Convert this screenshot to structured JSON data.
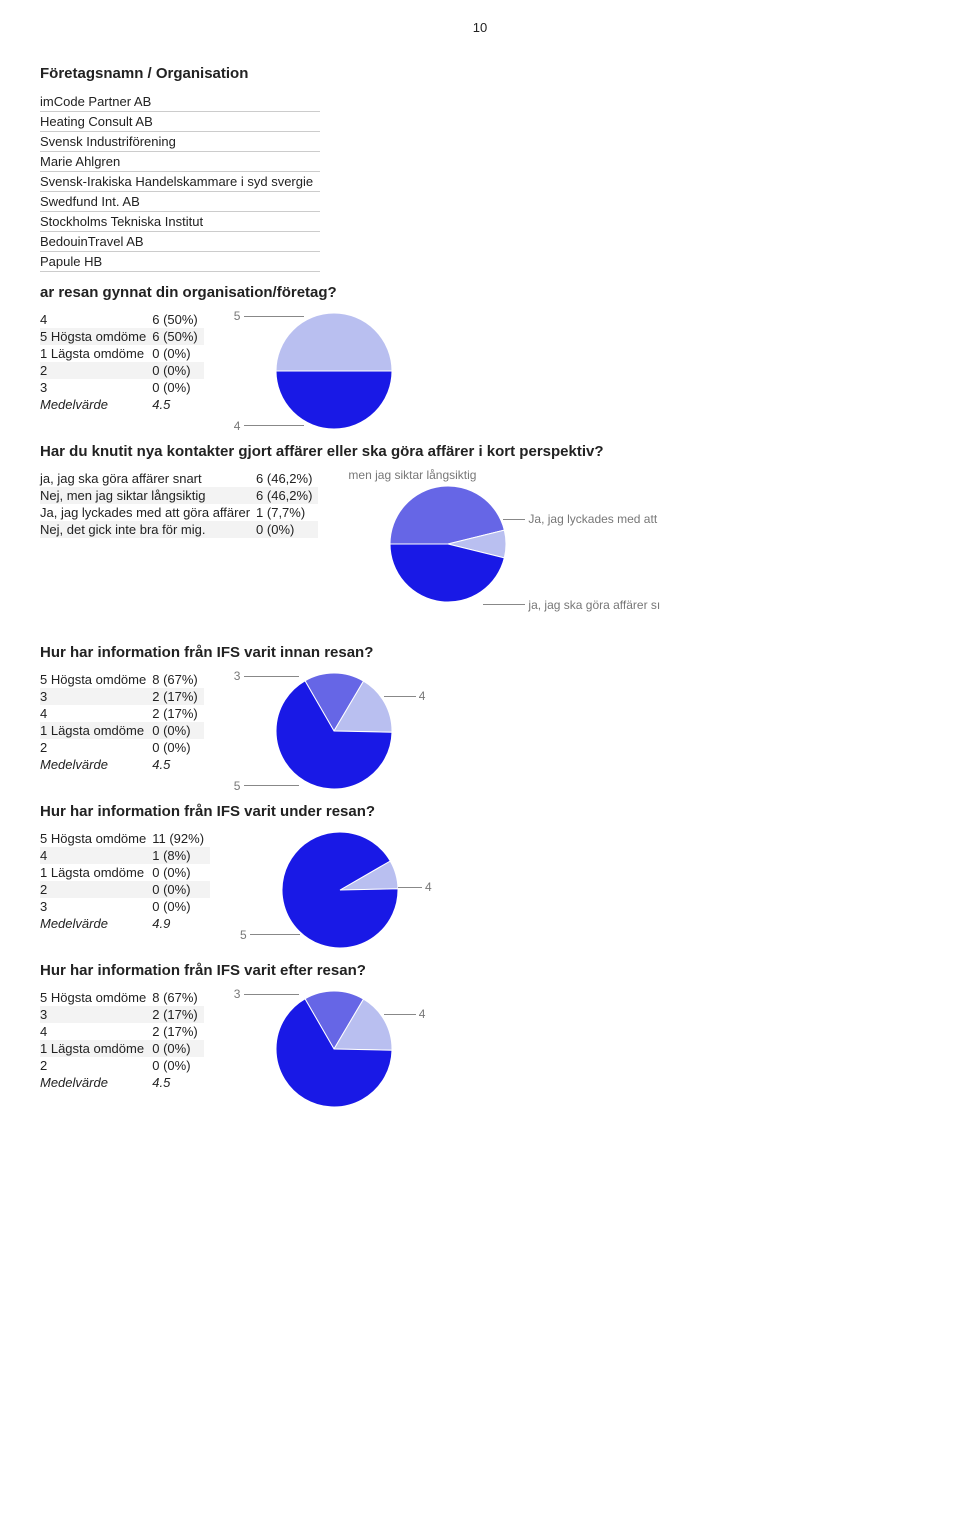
{
  "page_number": "10",
  "heading_company": "Företagsnamn / Organisation",
  "companies": [
    "imCode Partner AB",
    "Heating Consult AB",
    "Svensk Industriförening",
    "Marie Ahlgren",
    "Svensk-Irakiska Handelskammare i syd svergie",
    "Swedfund Int. AB",
    "Stockholms Tekniska Institut",
    "BedouinTravel AB",
    "Papule HB"
  ],
  "q1": {
    "title": "ar resan gynnat din organisation/företag?",
    "rows": [
      {
        "label": "4",
        "val": "6 (50%)"
      },
      {
        "label": "5 Högsta omdöme",
        "val": "6 (50%)"
      },
      {
        "label": "1 Lägsta omdöme",
        "val": "0 (0%)"
      },
      {
        "label": "2",
        "val": "0 (0%)"
      },
      {
        "label": "3",
        "val": "0 (0%)"
      }
    ],
    "avg_label": "Medelvärde",
    "avg_val": "4.5",
    "chart": {
      "slices": [
        {
          "color": "#b9bff0",
          "value": 50,
          "label": "5"
        },
        {
          "color": "#1919e6",
          "value": 50,
          "label": "4"
        }
      ]
    }
  },
  "q2": {
    "title": "Har du knutit nya kontakter gjort affärer eller ska göra affärer i kort perspektiv?",
    "rows": [
      {
        "label": "ja, jag ska göra affärer snart",
        "val": "6 (46,2%)"
      },
      {
        "label": "Nej, men jag siktar långsiktig",
        "val": "6 (46,2%)"
      },
      {
        "label": "Ja, jag lyckades med att göra affärer",
        "val": "1 (7,7%)"
      },
      {
        "label": "Nej, det gick inte bra för mig.",
        "val": "0 (0%)"
      }
    ],
    "chart": {
      "labels": {
        "top": "men jag siktar långsiktig",
        "right1": "Ja, jag lyckades med att",
        "right2": "ja, jag ska göra affärer sı"
      },
      "slices": [
        {
          "color": "#6666e6",
          "value": 46.2
        },
        {
          "color": "#b9bff0",
          "value": 7.7
        },
        {
          "color": "#1919e6",
          "value": 46.2
        }
      ]
    }
  },
  "q3": {
    "title": "Hur har information från IFS varit innan resan?",
    "rows": [
      {
        "label": "5 Högsta omdöme",
        "val": "8 (67%)"
      },
      {
        "label": "3",
        "val": "2 (17%)"
      },
      {
        "label": "4",
        "val": "2 (17%)"
      },
      {
        "label": "1 Lägsta omdöme",
        "val": "0 (0%)"
      },
      {
        "label": "2",
        "val": "0 (0%)"
      }
    ],
    "avg_label": "Medelvärde",
    "avg_val": "4.5",
    "chart": {
      "labels": {
        "l1": "3",
        "l2": "4",
        "l3": "5"
      },
      "slices": [
        {
          "color": "#6666e6",
          "value": 17
        },
        {
          "color": "#b9bff0",
          "value": 17
        },
        {
          "color": "#1919e6",
          "value": 67
        }
      ]
    }
  },
  "q4": {
    "title": "Hur har information från IFS varit under resan?",
    "rows": [
      {
        "label": "5 Högsta omdöme",
        "val": "11 (92%)"
      },
      {
        "label": "4",
        "val": "1  (8%)"
      },
      {
        "label": "1 Lägsta omdöme",
        "val": "0  (0%)"
      },
      {
        "label": "2",
        "val": "0  (0%)"
      },
      {
        "label": "3",
        "val": "0  (0%)"
      }
    ],
    "avg_label": "Medelvärde",
    "avg_val": "4.9",
    "chart": {
      "labels": {
        "l1": "4",
        "l2": "5"
      },
      "slices": [
        {
          "color": "#b9bff0",
          "value": 8
        },
        {
          "color": "#1919e6",
          "value": 92
        }
      ]
    }
  },
  "q5": {
    "title": "Hur har information från IFS varit efter resan?",
    "rows": [
      {
        "label": "5 Högsta omdöme",
        "val": "8 (67%)"
      },
      {
        "label": "3",
        "val": "2 (17%)"
      },
      {
        "label": "4",
        "val": "2 (17%)"
      },
      {
        "label": "1 Lägsta omdöme",
        "val": "0 (0%)"
      },
      {
        "label": "2",
        "val": "0 (0%)"
      }
    ],
    "avg_label": "Medelvärde",
    "avg_val": "4.5",
    "chart": {
      "labels": {
        "l1": "3",
        "l2": "4"
      },
      "slices": [
        {
          "color": "#6666e6",
          "value": 17
        },
        {
          "color": "#b9bff0",
          "value": 17
        },
        {
          "color": "#1919e6",
          "value": 67
        }
      ]
    }
  }
}
